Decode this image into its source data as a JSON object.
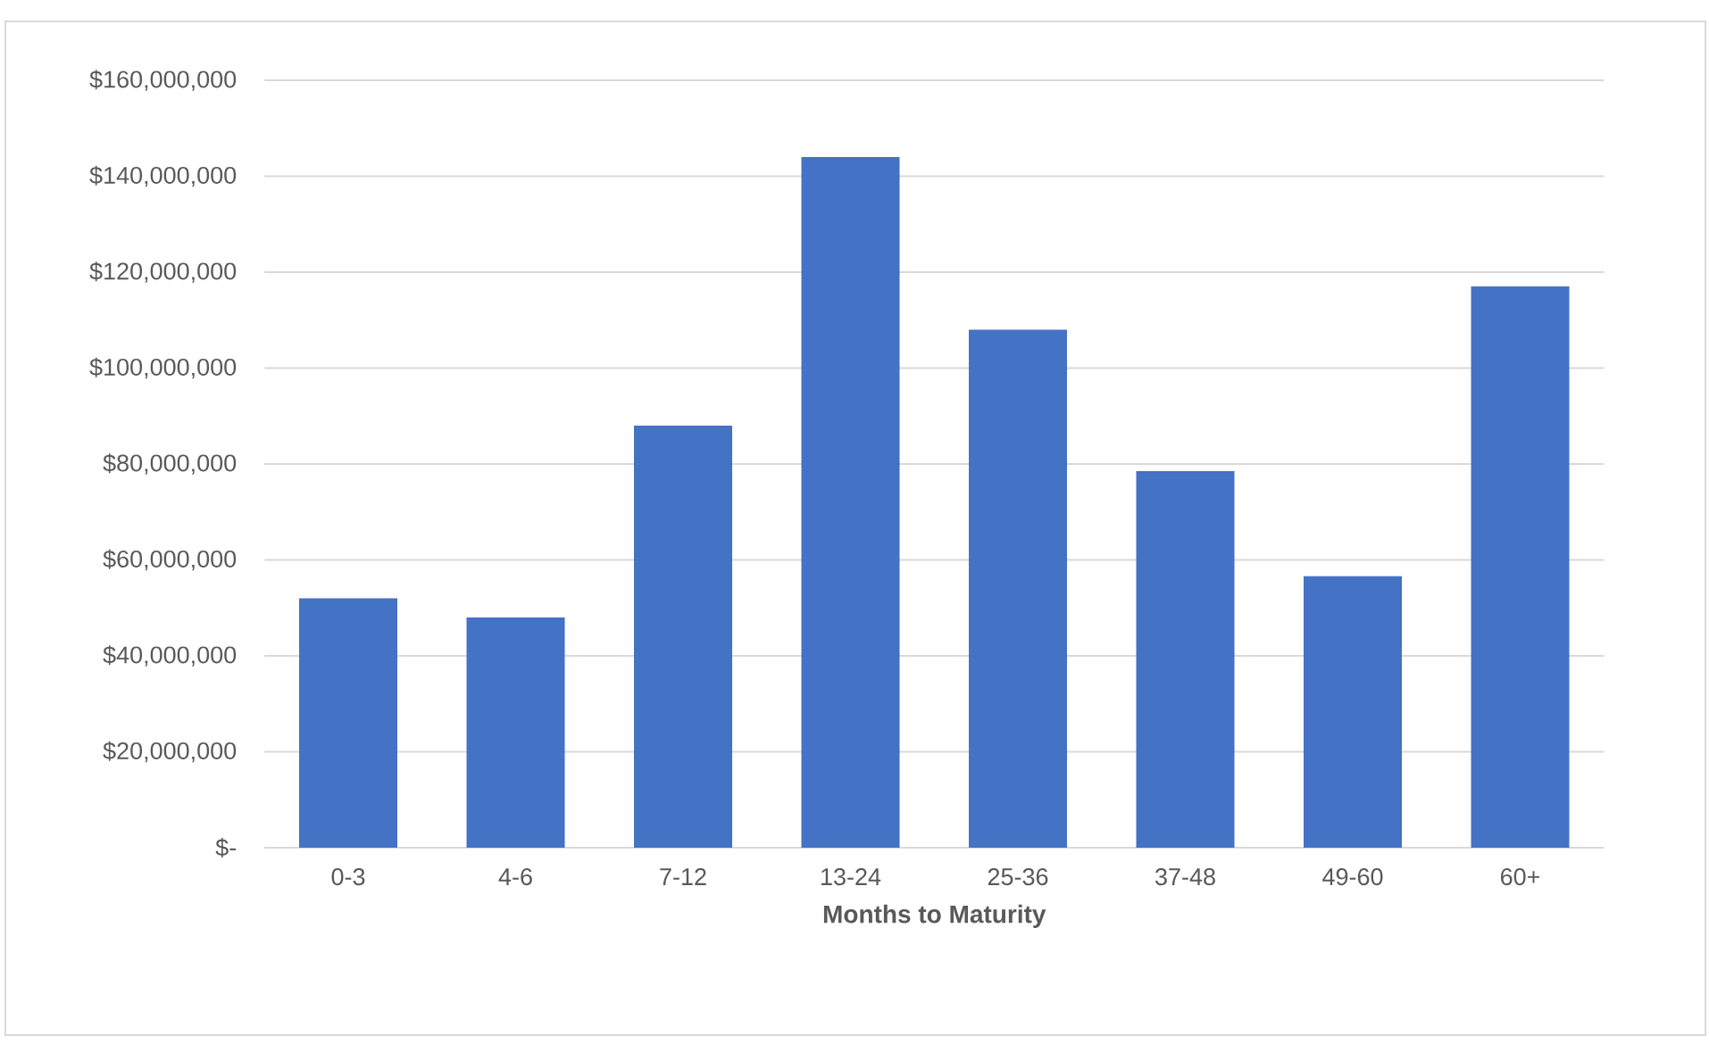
{
  "chart_data": {
    "type": "bar",
    "xlabel": "Months to Maturity",
    "categories": [
      "0-3",
      "4-6",
      "7-12",
      "13-24",
      "25-36",
      "37-48",
      "49-60",
      "60+"
    ],
    "values": [
      52000000,
      48000000,
      88000000,
      144000000,
      108000000,
      78500000,
      56600000,
      117000000
    ],
    "color": "#4472c4",
    "ylim": [
      0,
      160000000
    ],
    "yticks": [
      {
        "value": 0,
        "label": "$-"
      },
      {
        "value": 20000000,
        "label": "$20,000,000"
      },
      {
        "value": 40000000,
        "label": "$40,000,000"
      },
      {
        "value": 60000000,
        "label": "$60,000,000"
      },
      {
        "value": 80000000,
        "label": "$80,000,000"
      },
      {
        "value": 100000000,
        "label": "$100,000,000"
      },
      {
        "value": 120000000,
        "label": "$120,000,000"
      },
      {
        "value": 140000000,
        "label": "$140,000,000"
      },
      {
        "value": 160000000,
        "label": "$160,000,000"
      }
    ],
    "grid": "y"
  }
}
